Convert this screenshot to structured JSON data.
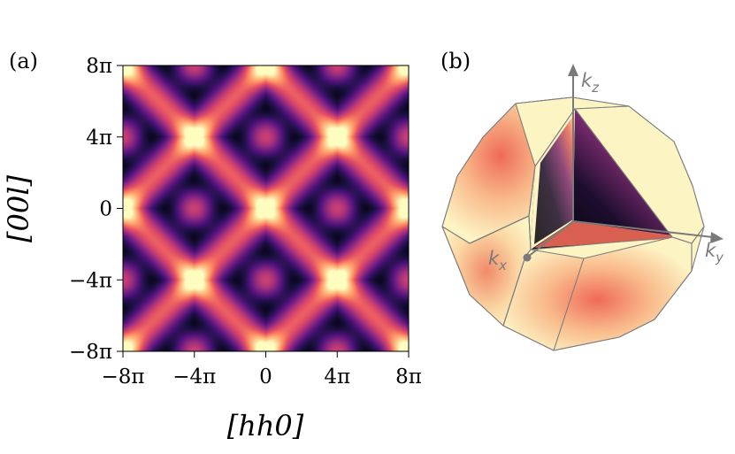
{
  "panels": {
    "a": {
      "label": "(a)"
    },
    "b": {
      "label": "(b)"
    }
  },
  "chart_data": [
    {
      "type": "heatmap",
      "xlabel": "[hh0]",
      "ylabel": "[00l]",
      "xlim": [
        -8,
        8
      ],
      "ylim": [
        -8,
        8
      ],
      "units": "π",
      "xticks": [
        "−8π",
        "−4π",
        "0",
        "4π",
        "8π"
      ],
      "yticks": [
        "8π",
        "4π",
        "0",
        "−4π",
        "−8π"
      ],
      "colormap": "magma",
      "bright_hot_spots": [
        [
          -4,
          4
        ],
        [
          4,
          4
        ],
        [
          0,
          0
        ],
        [
          -8,
          0
        ],
        [
          8,
          0
        ],
        [
          -4,
          -4
        ],
        [
          4,
          -4
        ],
        [
          0,
          8
        ],
        [
          0,
          -8
        ]
      ],
      "dark_pockets": [
        [
          -4,
          0
        ],
        [
          4,
          0
        ],
        [
          0,
          4
        ],
        [
          0,
          -4
        ],
        [
          -8,
          4
        ],
        [
          8,
          4
        ],
        [
          -8,
          -4
        ],
        [
          8,
          -4
        ]
      ]
    },
    {
      "type": "diagram",
      "description_label": "",
      "axes": [
        "kz",
        "ky",
        "kx"
      ],
      "axis_labels": {
        "kz": "k",
        "kz_sub": "z",
        "ky": "k",
        "ky_sub": "y",
        "kx": "k",
        "kx_sub": "x"
      },
      "colors": {
        "face": "#fdf5c6",
        "edge": "#7a7a7a",
        "axis": "#7a7a7a",
        "hot": "#f2735a"
      }
    }
  ]
}
